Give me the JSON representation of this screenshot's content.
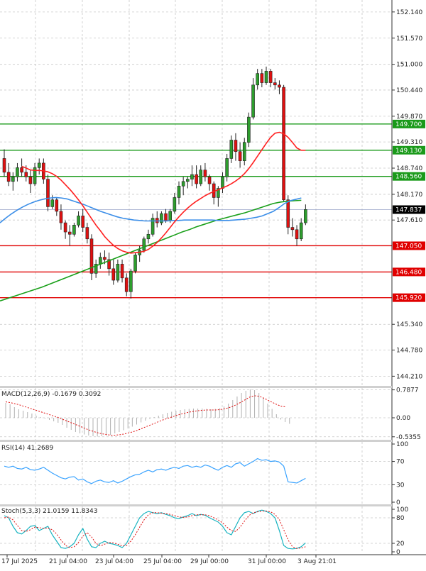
{
  "colors": {
    "support": "#e00000",
    "resistance": "#1a9a1a",
    "ma_red": "#ff2020",
    "ma_blue": "#3b8ee8",
    "ma_green": "#1aa01a",
    "bull": "#2d9d2d",
    "bear": "#e01010",
    "grid": "#c8c8c8",
    "current_tag": "#000000",
    "rsi_line": "#3aa3ff",
    "stoch_main": "#17b3c0",
    "stoch_signal": "#e01010"
  },
  "chart_data": [
    {
      "type": "candlestick",
      "panel": "price",
      "ylim": [
        144.0,
        152.4
      ],
      "y_ticks": [
        "152.140",
        "151.570",
        "151.000",
        "150.440",
        "149.870",
        "149.310",
        "148.740",
        "148.170",
        "147.610",
        "145.340",
        "144.780",
        "144.210"
      ],
      "current_price": "147.837",
      "support_levels": [
        "147.050",
        "146.480",
        "145.920"
      ],
      "resistance_levels": [
        "149.700",
        "149.130",
        "148.560"
      ],
      "candles": [
        {
          "o": 148.95,
          "h": 149.15,
          "l": 148.55,
          "c": 148.65
        },
        {
          "o": 148.65,
          "h": 148.85,
          "l": 148.35,
          "c": 148.45
        },
        {
          "o": 148.45,
          "h": 148.65,
          "l": 148.25,
          "c": 148.55
        },
        {
          "o": 148.55,
          "h": 148.85,
          "l": 148.45,
          "c": 148.75
        },
        {
          "o": 148.75,
          "h": 148.95,
          "l": 148.55,
          "c": 148.65
        },
        {
          "o": 148.65,
          "h": 148.8,
          "l": 148.45,
          "c": 148.55
        },
        {
          "o": 148.55,
          "h": 148.7,
          "l": 148.2,
          "c": 148.4
        },
        {
          "o": 148.4,
          "h": 148.85,
          "l": 148.35,
          "c": 148.75
        },
        {
          "o": 148.75,
          "h": 148.95,
          "l": 148.6,
          "c": 148.85
        },
        {
          "o": 148.85,
          "h": 148.95,
          "l": 148.4,
          "c": 148.5
        },
        {
          "o": 148.5,
          "h": 148.6,
          "l": 147.8,
          "c": 147.9
        },
        {
          "o": 147.9,
          "h": 148.15,
          "l": 147.85,
          "c": 148.05
        },
        {
          "o": 148.05,
          "h": 148.1,
          "l": 147.7,
          "c": 147.8
        },
        {
          "o": 147.8,
          "h": 147.95,
          "l": 147.4,
          "c": 147.55
        },
        {
          "o": 147.55,
          "h": 147.6,
          "l": 147.2,
          "c": 147.35
        },
        {
          "o": 147.35,
          "h": 147.5,
          "l": 147.05,
          "c": 147.3
        },
        {
          "o": 147.3,
          "h": 147.55,
          "l": 147.25,
          "c": 147.5
        },
        {
          "o": 147.5,
          "h": 147.8,
          "l": 147.45,
          "c": 147.7
        },
        {
          "o": 147.7,
          "h": 147.85,
          "l": 147.35,
          "c": 147.45
        },
        {
          "o": 147.45,
          "h": 147.55,
          "l": 147.1,
          "c": 147.2
        },
        {
          "o": 147.2,
          "h": 147.3,
          "l": 146.3,
          "c": 146.45
        },
        {
          "o": 146.45,
          "h": 146.75,
          "l": 146.35,
          "c": 146.65
        },
        {
          "o": 146.65,
          "h": 146.9,
          "l": 146.55,
          "c": 146.8
        },
        {
          "o": 146.8,
          "h": 146.95,
          "l": 146.65,
          "c": 146.75
        },
        {
          "o": 146.75,
          "h": 146.9,
          "l": 146.4,
          "c": 146.55
        },
        {
          "o": 146.55,
          "h": 146.75,
          "l": 146.2,
          "c": 146.3
        },
        {
          "o": 146.3,
          "h": 146.75,
          "l": 146.25,
          "c": 146.65
        },
        {
          "o": 146.65,
          "h": 146.75,
          "l": 146.25,
          "c": 146.35
        },
        {
          "o": 146.35,
          "h": 146.45,
          "l": 145.95,
          "c": 146.05
        },
        {
          "o": 146.05,
          "h": 146.55,
          "l": 145.9,
          "c": 146.5
        },
        {
          "o": 146.5,
          "h": 146.9,
          "l": 146.45,
          "c": 146.85
        },
        {
          "o": 146.85,
          "h": 147.05,
          "l": 146.7,
          "c": 146.95
        },
        {
          "o": 146.95,
          "h": 147.25,
          "l": 146.9,
          "c": 147.2
        },
        {
          "o": 147.2,
          "h": 147.4,
          "l": 147.1,
          "c": 147.3
        },
        {
          "o": 147.3,
          "h": 147.75,
          "l": 147.25,
          "c": 147.65
        },
        {
          "o": 147.65,
          "h": 147.8,
          "l": 147.45,
          "c": 147.55
        },
        {
          "o": 147.55,
          "h": 147.8,
          "l": 147.5,
          "c": 147.75
        },
        {
          "o": 147.75,
          "h": 147.85,
          "l": 147.55,
          "c": 147.6
        },
        {
          "o": 147.6,
          "h": 147.85,
          "l": 147.55,
          "c": 147.8
        },
        {
          "o": 147.8,
          "h": 148.2,
          "l": 147.75,
          "c": 148.1
        },
        {
          "o": 148.1,
          "h": 148.45,
          "l": 147.95,
          "c": 148.35
        },
        {
          "o": 148.35,
          "h": 148.55,
          "l": 148.15,
          "c": 148.45
        },
        {
          "o": 148.45,
          "h": 148.55,
          "l": 148.3,
          "c": 148.5
        },
        {
          "o": 148.5,
          "h": 148.8,
          "l": 148.35,
          "c": 148.6
        },
        {
          "o": 148.6,
          "h": 148.8,
          "l": 148.3,
          "c": 148.4
        },
        {
          "o": 148.4,
          "h": 148.8,
          "l": 148.35,
          "c": 148.7
        },
        {
          "o": 148.7,
          "h": 148.85,
          "l": 148.45,
          "c": 148.55
        },
        {
          "o": 148.55,
          "h": 148.6,
          "l": 148.25,
          "c": 148.4
        },
        {
          "o": 148.4,
          "h": 148.45,
          "l": 147.95,
          "c": 148.1
        },
        {
          "o": 148.1,
          "h": 148.35,
          "l": 147.9,
          "c": 148.3
        },
        {
          "o": 148.3,
          "h": 148.65,
          "l": 148.2,
          "c": 148.55
        },
        {
          "o": 148.55,
          "h": 149.05,
          "l": 148.45,
          "c": 148.95
        },
        {
          "o": 148.95,
          "h": 149.45,
          "l": 148.85,
          "c": 149.35
        },
        {
          "o": 149.35,
          "h": 149.5,
          "l": 148.9,
          "c": 149.1
        },
        {
          "o": 149.1,
          "h": 149.3,
          "l": 148.75,
          "c": 148.9
        },
        {
          "o": 148.9,
          "h": 149.4,
          "l": 148.8,
          "c": 149.3
        },
        {
          "o": 149.3,
          "h": 149.95,
          "l": 149.2,
          "c": 149.85
        },
        {
          "o": 149.85,
          "h": 150.7,
          "l": 149.8,
          "c": 150.55
        },
        {
          "o": 150.55,
          "h": 150.9,
          "l": 150.45,
          "c": 150.8
        },
        {
          "o": 150.8,
          "h": 150.9,
          "l": 150.5,
          "c": 150.6
        },
        {
          "o": 150.6,
          "h": 150.95,
          "l": 150.55,
          "c": 150.85
        },
        {
          "o": 150.85,
          "h": 150.9,
          "l": 150.5,
          "c": 150.6
        },
        {
          "o": 150.6,
          "h": 150.7,
          "l": 150.45,
          "c": 150.55
        },
        {
          "o": 150.55,
          "h": 150.65,
          "l": 150.35,
          "c": 150.5
        },
        {
          "o": 150.5,
          "h": 150.55,
          "l": 148.0,
          "c": 148.05
        },
        {
          "o": 148.05,
          "h": 148.15,
          "l": 147.3,
          "c": 147.45
        },
        {
          "o": 147.45,
          "h": 147.65,
          "l": 147.25,
          "c": 147.4
        },
        {
          "o": 147.4,
          "h": 147.5,
          "l": 147.05,
          "c": 147.2
        },
        {
          "o": 147.2,
          "h": 147.65,
          "l": 147.15,
          "c": 147.55
        },
        {
          "o": 147.55,
          "h": 147.95,
          "l": 147.5,
          "c": 147.84
        }
      ],
      "ma_red": [
        148.78,
        148.74,
        148.7,
        148.69,
        148.69,
        148.68,
        148.66,
        148.62,
        148.56,
        148.48,
        148.38,
        148.28,
        148.17,
        148.05,
        147.92,
        147.78,
        147.64,
        147.5,
        147.38,
        147.25,
        147.15,
        147.06,
        146.99,
        146.94,
        146.91,
        146.89,
        146.9,
        146.91,
        146.93,
        146.97,
        147.04,
        147.12,
        147.22,
        147.33,
        147.45,
        147.57,
        147.68,
        147.78,
        147.87,
        147.95,
        148.02,
        148.08,
        148.14,
        148.19,
        148.23,
        148.27,
        148.31,
        148.35,
        148.4,
        148.46,
        148.53,
        148.62,
        148.73,
        148.86,
        149.0,
        149.14,
        149.28,
        149.41,
        149.5,
        149.52,
        149.49,
        149.41,
        149.3,
        149.18,
        149.13,
        149.13
      ],
      "ma_blue": [
        147.55,
        147.65,
        147.74,
        147.82,
        147.89,
        147.95,
        148.0,
        148.04,
        148.07,
        148.09,
        148.1,
        148.09,
        148.07,
        148.03,
        147.99,
        147.95,
        147.9,
        147.85,
        147.8,
        147.76,
        147.72,
        147.68,
        147.65,
        147.63,
        147.61,
        147.6,
        147.59,
        147.59,
        147.59,
        147.59,
        147.59,
        147.6,
        147.6,
        147.61,
        147.61,
        147.61,
        147.61,
        147.61,
        147.61,
        147.6,
        147.6,
        147.6,
        147.61,
        147.62,
        147.63,
        147.65,
        147.67,
        147.7,
        147.75,
        147.8,
        147.88,
        147.97,
        148.03,
        148.06,
        148.09
      ],
      "ma_green": [
        145.85,
        145.9,
        145.95,
        146.0,
        146.05,
        146.1,
        146.15,
        146.21,
        146.27,
        146.33,
        146.39,
        146.45,
        146.51,
        146.57,
        146.63,
        146.69,
        146.75,
        146.81,
        146.87,
        146.93,
        146.99,
        147.05,
        147.11,
        147.17,
        147.23,
        147.29,
        147.35,
        147.4,
        147.46,
        147.51,
        147.56,
        147.61,
        147.65,
        147.69,
        147.73,
        147.77,
        147.82,
        147.87,
        147.92,
        147.97,
        148.0,
        148.02,
        148.03,
        148.04
      ]
    },
    {
      "type": "bar+line",
      "panel": "macd",
      "title": "MACD(12,26,9) -0.1679 0.3092",
      "ylim": [
        -0.62,
        0.84
      ],
      "y_ticks": [
        "0.7877",
        "0.00",
        "-0.5355"
      ],
      "histogram": [
        0.42,
        0.38,
        0.3,
        0.24,
        0.2,
        0.16,
        0.12,
        0.06,
        0.02,
        -0.02,
        -0.06,
        -0.1,
        -0.14,
        -0.2,
        -0.28,
        -0.34,
        -0.4,
        -0.44,
        -0.47,
        -0.5,
        -0.52,
        -0.53,
        -0.52,
        -0.5,
        -0.48,
        -0.44,
        -0.4,
        -0.35,
        -0.3,
        -0.25,
        -0.19,
        -0.13,
        -0.08,
        -0.03,
        0.02,
        0.06,
        0.1,
        0.14,
        0.17,
        0.2,
        0.22,
        0.24,
        0.25,
        0.26,
        0.26,
        0.26,
        0.25,
        0.24,
        0.25,
        0.27,
        0.32,
        0.4,
        0.5,
        0.6,
        0.7,
        0.76,
        0.8,
        0.78,
        0.7,
        0.55,
        0.4,
        0.25,
        0.1,
        -0.05,
        -0.12,
        -0.17
      ],
      "signal": [
        0.45,
        0.43,
        0.4,
        0.37,
        0.33,
        0.29,
        0.25,
        0.21,
        0.17,
        0.13,
        0.09,
        0.05,
        0.01,
        -0.04,
        -0.09,
        -0.14,
        -0.19,
        -0.24,
        -0.29,
        -0.34,
        -0.38,
        -0.42,
        -0.45,
        -0.47,
        -0.49,
        -0.49,
        -0.48,
        -0.46,
        -0.43,
        -0.4,
        -0.36,
        -0.31,
        -0.26,
        -0.21,
        -0.16,
        -0.11,
        -0.06,
        -0.02,
        0.02,
        0.06,
        0.1,
        0.13,
        0.16,
        0.18,
        0.2,
        0.21,
        0.22,
        0.22,
        0.22,
        0.23,
        0.25,
        0.28,
        0.32,
        0.38,
        0.45,
        0.52,
        0.59,
        0.62,
        0.61,
        0.56,
        0.5,
        0.44,
        0.38,
        0.33,
        0.31
      ]
    },
    {
      "type": "line",
      "panel": "rsi",
      "title": "RSI(14) 41.2689",
      "ylim": [
        0,
        100
      ],
      "y_ticks": [
        "100",
        "70",
        "30",
        "0"
      ],
      "values": [
        62,
        60,
        62,
        58,
        57,
        60,
        56,
        55,
        57,
        60,
        55,
        50,
        46,
        42,
        40,
        43,
        44,
        38,
        40,
        35,
        32,
        36,
        38,
        35,
        34,
        37,
        33,
        36,
        40,
        44,
        47,
        48,
        52,
        55,
        52,
        56,
        57,
        55,
        58,
        60,
        58,
        62,
        63,
        60,
        62,
        60,
        64,
        62,
        58,
        55,
        60,
        63,
        60,
        66,
        68,
        62,
        66,
        70,
        75,
        72,
        73,
        70,
        71,
        69,
        62,
        35,
        34,
        33,
        37,
        41
      ]
    },
    {
      "type": "line",
      "panel": "stoch",
      "title": "Stoch(5,3,3) 21.0159 11.8343",
      "ylim": [
        0,
        100
      ],
      "y_ticks": [
        "100",
        "80",
        "20",
        "0"
      ],
      "main": [
        85,
        80,
        60,
        45,
        42,
        50,
        60,
        62,
        50,
        55,
        60,
        40,
        25,
        10,
        8,
        12,
        20,
        40,
        55,
        30,
        12,
        10,
        20,
        25,
        20,
        18,
        15,
        10,
        20,
        40,
        60,
        80,
        90,
        95,
        92,
        90,
        92,
        88,
        85,
        80,
        78,
        82,
        85,
        90,
        85,
        88,
        86,
        80,
        75,
        70,
        60,
        45,
        40,
        60,
        80,
        92,
        95,
        90,
        95,
        98,
        95,
        90,
        80,
        50,
        15,
        8,
        7,
        8,
        12,
        21
      ],
      "signal": [
        80,
        82,
        75,
        62,
        50,
        48,
        52,
        58,
        57,
        55,
        56,
        52,
        42,
        28,
        15,
        10,
        12,
        22,
        37,
        45,
        35,
        20,
        14,
        18,
        22,
        21,
        18,
        14,
        15,
        25,
        40,
        58,
        75,
        87,
        92,
        92,
        91,
        90,
        88,
        85,
        82,
        81,
        82,
        85,
        87,
        87,
        87,
        85,
        80,
        75,
        68,
        58,
        50,
        48,
        58,
        72,
        85,
        92,
        94,
        96,
        96,
        94,
        88,
        76,
        52,
        28,
        12,
        8,
        9,
        12
      ]
    }
  ],
  "x_labels": [
    "17 Jul 2025",
    "21 Jul 04:00",
    "23 Jul 04:00",
    "25 Jul 04:00",
    "29 Jul 00:00",
    "31 Jul 00:00",
    "3 Aug 21:01"
  ]
}
